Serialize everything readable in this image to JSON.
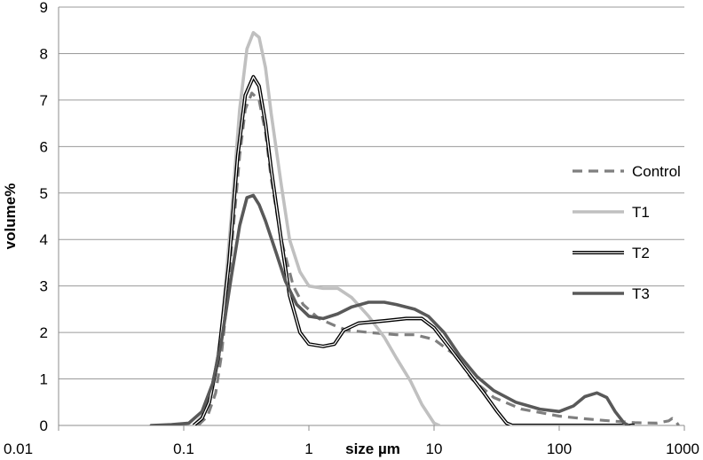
{
  "chart_data": {
    "type": "line",
    "title": "",
    "xlabel": "size µm",
    "ylabel": "volume%",
    "xscale": "log",
    "xlim": [
      0.01,
      1000
    ],
    "ylim": [
      0,
      9
    ],
    "grid": "horizontal",
    "legend_position": "right",
    "x_ticks": [
      "0.01",
      "0.1",
      "1",
      "10",
      "100",
      "1000"
    ],
    "y_ticks": [
      "0",
      "1",
      "2",
      "3",
      "4",
      "5",
      "6",
      "7",
      "8",
      "9"
    ],
    "series": [
      {
        "name": "Control",
        "color": "#7f7f7f",
        "style": "dashed",
        "points": [
          [
            0.13,
            0
          ],
          [
            0.155,
            0.2
          ],
          [
            0.18,
            0.7
          ],
          [
            0.2,
            1.5
          ],
          [
            0.22,
            2.6
          ],
          [
            0.25,
            4.3
          ],
          [
            0.28,
            5.8
          ],
          [
            0.31,
            6.8
          ],
          [
            0.35,
            7.15
          ],
          [
            0.4,
            7.0
          ],
          [
            0.45,
            6.3
          ],
          [
            0.5,
            5.3
          ],
          [
            0.6,
            4.0
          ],
          [
            0.75,
            3.0
          ],
          [
            0.9,
            2.6
          ],
          [
            1.2,
            2.3
          ],
          [
            1.6,
            2.15
          ],
          [
            2,
            2.05
          ],
          [
            3,
            2.0
          ],
          [
            5,
            1.95
          ],
          [
            7,
            1.95
          ],
          [
            10,
            1.85
          ],
          [
            15,
            1.5
          ],
          [
            20,
            1.0
          ],
          [
            30,
            0.6
          ],
          [
            50,
            0.35
          ],
          [
            80,
            0.25
          ],
          [
            100,
            0.2
          ],
          [
            150,
            0.15
          ],
          [
            250,
            0.1
          ],
          [
            400,
            0.06
          ],
          [
            600,
            0.05
          ],
          [
            750,
            0.1
          ],
          [
            800,
            0.15
          ],
          [
            850,
            0.1
          ],
          [
            900,
            0
          ]
        ]
      },
      {
        "name": "T1",
        "color": "#c0c0c0",
        "style": "solid",
        "points": [
          [
            0.12,
            0
          ],
          [
            0.14,
            0.2
          ],
          [
            0.17,
            0.8
          ],
          [
            0.2,
            2.0
          ],
          [
            0.24,
            4.5
          ],
          [
            0.28,
            6.8
          ],
          [
            0.32,
            8.1
          ],
          [
            0.36,
            8.45
          ],
          [
            0.4,
            8.35
          ],
          [
            0.45,
            7.7
          ],
          [
            0.5,
            6.7
          ],
          [
            0.6,
            5.2
          ],
          [
            0.7,
            4.0
          ],
          [
            0.85,
            3.3
          ],
          [
            1.0,
            3.0
          ],
          [
            1.3,
            2.95
          ],
          [
            1.7,
            2.95
          ],
          [
            2.2,
            2.75
          ],
          [
            3,
            2.35
          ],
          [
            4,
            1.9
          ],
          [
            5,
            1.45
          ],
          [
            6.5,
            0.95
          ],
          [
            8,
            0.45
          ],
          [
            10,
            0.05
          ],
          [
            11,
            0
          ]
        ]
      },
      {
        "name": "T2",
        "color": "#000000",
        "style": "double",
        "points": [
          [
            0.12,
            0
          ],
          [
            0.14,
            0.15
          ],
          [
            0.16,
            0.5
          ],
          [
            0.19,
            1.5
          ],
          [
            0.23,
            3.5
          ],
          [
            0.27,
            5.8
          ],
          [
            0.31,
            7.1
          ],
          [
            0.36,
            7.5
          ],
          [
            0.4,
            7.3
          ],
          [
            0.45,
            6.5
          ],
          [
            0.5,
            5.5
          ],
          [
            0.6,
            4.0
          ],
          [
            0.7,
            2.8
          ],
          [
            0.85,
            2.0
          ],
          [
            1.0,
            1.75
          ],
          [
            1.3,
            1.7
          ],
          [
            1.6,
            1.75
          ],
          [
            1.9,
            2.05
          ],
          [
            2.5,
            2.2
          ],
          [
            4,
            2.25
          ],
          [
            6,
            2.3
          ],
          [
            8,
            2.3
          ],
          [
            10,
            2.1
          ],
          [
            13,
            1.7
          ],
          [
            18,
            1.2
          ],
          [
            25,
            0.7
          ],
          [
            32,
            0.3
          ],
          [
            38,
            0.05
          ],
          [
            42,
            0
          ],
          [
            100,
            0
          ],
          [
            400,
            0
          ]
        ]
      },
      {
        "name": "T3",
        "color": "#595959",
        "style": "solid",
        "points": [
          [
            0.055,
            0
          ],
          [
            0.08,
            0.02
          ],
          [
            0.11,
            0.05
          ],
          [
            0.14,
            0.3
          ],
          [
            0.17,
            0.9
          ],
          [
            0.2,
            1.8
          ],
          [
            0.24,
            3.2
          ],
          [
            0.28,
            4.3
          ],
          [
            0.32,
            4.9
          ],
          [
            0.36,
            4.95
          ],
          [
            0.4,
            4.75
          ],
          [
            0.45,
            4.4
          ],
          [
            0.55,
            3.7
          ],
          [
            0.65,
            3.1
          ],
          [
            0.8,
            2.6
          ],
          [
            1.0,
            2.35
          ],
          [
            1.3,
            2.3
          ],
          [
            1.7,
            2.4
          ],
          [
            2.2,
            2.55
          ],
          [
            3,
            2.65
          ],
          [
            4,
            2.65
          ],
          [
            5,
            2.6
          ],
          [
            7,
            2.5
          ],
          [
            9,
            2.35
          ],
          [
            12,
            2.0
          ],
          [
            16,
            1.5
          ],
          [
            22,
            1.05
          ],
          [
            30,
            0.75
          ],
          [
            45,
            0.5
          ],
          [
            70,
            0.35
          ],
          [
            100,
            0.3
          ],
          [
            130,
            0.42
          ],
          [
            160,
            0.62
          ],
          [
            200,
            0.7
          ],
          [
            240,
            0.6
          ],
          [
            280,
            0.3
          ],
          [
            330,
            0.05
          ],
          [
            360,
            0
          ]
        ]
      }
    ]
  }
}
